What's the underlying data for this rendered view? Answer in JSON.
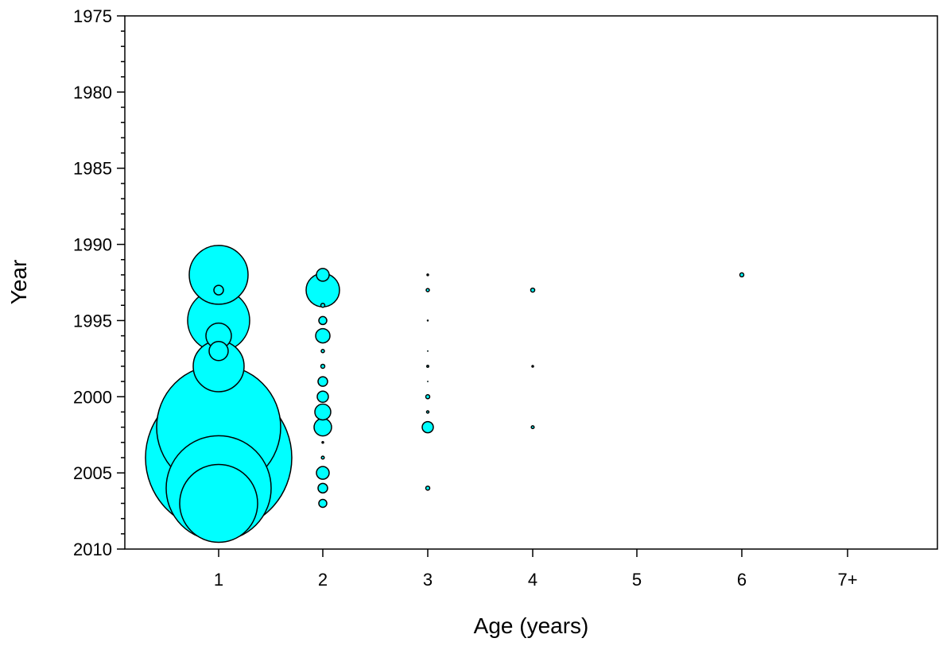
{
  "chart_data": {
    "type": "bubble",
    "xlabel": "Age (years)",
    "ylabel": "Year",
    "x_categories": [
      "1",
      "2",
      "3",
      "4",
      "5",
      "6",
      "7+"
    ],
    "y_ticks": [
      1975,
      1980,
      1985,
      1990,
      1995,
      2000,
      2005,
      2010
    ],
    "ylim": [
      1975,
      2010
    ],
    "y_inverted": true,
    "bubble_color": "#00ffff",
    "outline_color": "#000000",
    "points": [
      {
        "age": "1",
        "year": 1992,
        "size": 37
      },
      {
        "age": "1",
        "year": 1993,
        "size": 6
      },
      {
        "age": "1",
        "year": 1995,
        "size": 39
      },
      {
        "age": "1",
        "year": 1996,
        "size": 16
      },
      {
        "age": "1",
        "year": 1997,
        "size": 12
      },
      {
        "age": "1",
        "year": 1998,
        "size": 32
      },
      {
        "age": "1",
        "year": 2002,
        "size": 78
      },
      {
        "age": "1",
        "year": 2004,
        "size": 92
      },
      {
        "age": "1",
        "year": 2006,
        "size": 66
      },
      {
        "age": "1",
        "year": 2007,
        "size": 49
      },
      {
        "age": "2",
        "year": 1992,
        "size": 8
      },
      {
        "age": "2",
        "year": 1993,
        "size": 21
      },
      {
        "age": "2",
        "year": 1994,
        "size": 2.5
      },
      {
        "age": "2",
        "year": 1995,
        "size": 5
      },
      {
        "age": "2",
        "year": 1996,
        "size": 9
      },
      {
        "age": "2",
        "year": 1997,
        "size": 2
      },
      {
        "age": "2",
        "year": 1998,
        "size": 2.5
      },
      {
        "age": "2",
        "year": 1999,
        "size": 6
      },
      {
        "age": "2",
        "year": 2000,
        "size": 7
      },
      {
        "age": "2",
        "year": 2001,
        "size": 10
      },
      {
        "age": "2",
        "year": 2002,
        "size": 11
      },
      {
        "age": "2",
        "year": 2003,
        "size": 1
      },
      {
        "age": "2",
        "year": 2004,
        "size": 1.8
      },
      {
        "age": "2",
        "year": 2005,
        "size": 8
      },
      {
        "age": "2",
        "year": 2006,
        "size": 6
      },
      {
        "age": "2",
        "year": 2007,
        "size": 5
      },
      {
        "age": "3",
        "year": 1992,
        "size": 1
      },
      {
        "age": "3",
        "year": 1993,
        "size": 2
      },
      {
        "age": "3",
        "year": 1995,
        "size": 0.5
      },
      {
        "age": "3",
        "year": 1997,
        "size": 0.3
      },
      {
        "age": "3",
        "year": 1998,
        "size": 1.2
      },
      {
        "age": "3",
        "year": 1999,
        "size": 0.3
      },
      {
        "age": "3",
        "year": 2000,
        "size": 2.5
      },
      {
        "age": "3",
        "year": 2001,
        "size": 1.5
      },
      {
        "age": "3",
        "year": 2002,
        "size": 7
      },
      {
        "age": "3",
        "year": 2006,
        "size": 2.5
      },
      {
        "age": "4",
        "year": 1993,
        "size": 2.5
      },
      {
        "age": "4",
        "year": 1998,
        "size": 1
      },
      {
        "age": "4",
        "year": 2002,
        "size": 1.8
      },
      {
        "age": "6",
        "year": 1992,
        "size": 2.5
      }
    ]
  }
}
